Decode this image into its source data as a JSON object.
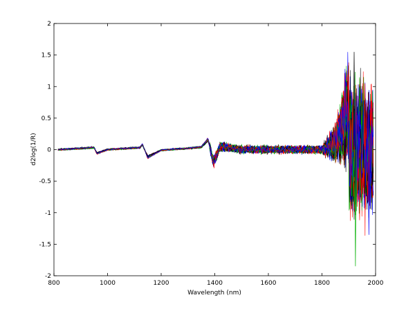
{
  "chart_data": {
    "type": "line",
    "title": "",
    "xlabel": "Wavelength (nm)",
    "ylabel": "d2log(1/R)",
    "xlim": [
      800,
      2000
    ],
    "ylim": [
      -2,
      2
    ],
    "xticks": [
      800,
      1000,
      1200,
      1400,
      1600,
      1800,
      2000
    ],
    "yticks": [
      -2,
      -1.5,
      -1,
      -0.5,
      0,
      0.5,
      1,
      1.5,
      2
    ],
    "xtick_labels": [
      "800",
      "1000",
      "1200",
      "1400",
      "1600",
      "1800",
      "2000"
    ],
    "ytick_labels": [
      "-2",
      "-1.5",
      "-1",
      "-0.5",
      "0",
      "0.5",
      "1",
      "1.5",
      "2"
    ],
    "grid": false,
    "legend": "none",
    "series_colors": [
      "#000000",
      "#00b000",
      "#ff0000",
      "#0000ff"
    ],
    "spectrum_features": [
      {
        "x": 820,
        "y": 0.0
      },
      {
        "x": 950,
        "y": 0.03
      },
      {
        "x": 960,
        "y": -0.06
      },
      {
        "x": 1000,
        "y": 0.0
      },
      {
        "x": 1120,
        "y": 0.03
      },
      {
        "x": 1130,
        "y": 0.08
      },
      {
        "x": 1150,
        "y": -0.12
      },
      {
        "x": 1200,
        "y": -0.01
      },
      {
        "x": 1300,
        "y": 0.02
      },
      {
        "x": 1350,
        "y": 0.04
      },
      {
        "x": 1375,
        "y": 0.16
      },
      {
        "x": 1395,
        "y": -0.2
      },
      {
        "x": 1420,
        "y": 0.05
      },
      {
        "x": 1500,
        "y": 0.0
      },
      {
        "x": 1700,
        "y": 0.0
      },
      {
        "x": 1800,
        "y": 0.0
      },
      {
        "x": 1850,
        "y": 0.1
      },
      {
        "x": 1900,
        "y": 0.6
      },
      {
        "x": 1920,
        "y": 1.55
      },
      {
        "x": 1925,
        "y": -1.85
      },
      {
        "x": 1960,
        "y": 1.05
      },
      {
        "x": 1980,
        "y": -1.2
      },
      {
        "x": 1990,
        "y": 0.0
      }
    ]
  }
}
